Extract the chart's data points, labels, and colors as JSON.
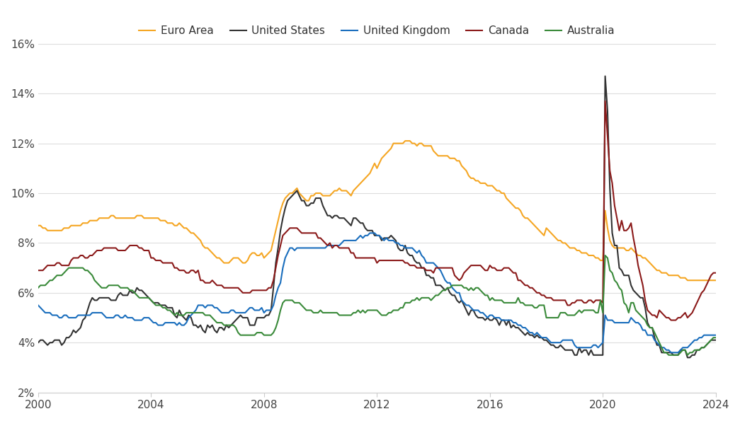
{
  "title": "",
  "background_color": "#ffffff",
  "legend_entries": [
    "Euro Area",
    "United States",
    "United Kingdom",
    "Canada",
    "Australia"
  ],
  "colors": {
    "Euro Area": "#F5A623",
    "United States": "#333333",
    "United Kingdom": "#1A6EBD",
    "Canada": "#8B1A1A",
    "Australia": "#3A8A3A"
  },
  "ylim": [
    0.02,
    0.16
  ],
  "xlim": [
    2000,
    2024
  ],
  "yticks": [
    0.02,
    0.04,
    0.06,
    0.08,
    0.1,
    0.12,
    0.14,
    0.16
  ],
  "ytick_labels": [
    "2%",
    "4%",
    "6%",
    "8%",
    "10%",
    "12%",
    "14%",
    "16%"
  ],
  "xticks": [
    2000,
    2004,
    2008,
    2012,
    2016,
    2020,
    2024
  ],
  "figsize": [
    10.45,
    5.95
  ],
  "dpi": 100,
  "line_width": 1.5,
  "dates": [
    2000.0,
    2000.083,
    2000.167,
    2000.25,
    2000.333,
    2000.417,
    2000.5,
    2000.583,
    2000.667,
    2000.75,
    2000.833,
    2000.917,
    2001.0,
    2001.083,
    2001.167,
    2001.25,
    2001.333,
    2001.417,
    2001.5,
    2001.583,
    2001.667,
    2001.75,
    2001.833,
    2001.917,
    2002.0,
    2002.083,
    2002.167,
    2002.25,
    2002.333,
    2002.417,
    2002.5,
    2002.583,
    2002.667,
    2002.75,
    2002.833,
    2002.917,
    2003.0,
    2003.083,
    2003.167,
    2003.25,
    2003.333,
    2003.417,
    2003.5,
    2003.583,
    2003.667,
    2003.75,
    2003.833,
    2003.917,
    2004.0,
    2004.083,
    2004.167,
    2004.25,
    2004.333,
    2004.417,
    2004.5,
    2004.583,
    2004.667,
    2004.75,
    2004.833,
    2004.917,
    2005.0,
    2005.083,
    2005.167,
    2005.25,
    2005.333,
    2005.417,
    2005.5,
    2005.583,
    2005.667,
    2005.75,
    2005.833,
    2005.917,
    2006.0,
    2006.083,
    2006.167,
    2006.25,
    2006.333,
    2006.417,
    2006.5,
    2006.583,
    2006.667,
    2006.75,
    2006.833,
    2006.917,
    2007.0,
    2007.083,
    2007.167,
    2007.25,
    2007.333,
    2007.417,
    2007.5,
    2007.583,
    2007.667,
    2007.75,
    2007.833,
    2007.917,
    2008.0,
    2008.083,
    2008.167,
    2008.25,
    2008.333,
    2008.417,
    2008.5,
    2008.583,
    2008.667,
    2008.75,
    2008.833,
    2008.917,
    2009.0,
    2009.083,
    2009.167,
    2009.25,
    2009.333,
    2009.417,
    2009.5,
    2009.583,
    2009.667,
    2009.75,
    2009.833,
    2009.917,
    2010.0,
    2010.083,
    2010.167,
    2010.25,
    2010.333,
    2010.417,
    2010.5,
    2010.583,
    2010.667,
    2010.75,
    2010.833,
    2010.917,
    2011.0,
    2011.083,
    2011.167,
    2011.25,
    2011.333,
    2011.417,
    2011.5,
    2011.583,
    2011.667,
    2011.75,
    2011.833,
    2011.917,
    2012.0,
    2012.083,
    2012.167,
    2012.25,
    2012.333,
    2012.417,
    2012.5,
    2012.583,
    2012.667,
    2012.75,
    2012.833,
    2012.917,
    2013.0,
    2013.083,
    2013.167,
    2013.25,
    2013.333,
    2013.417,
    2013.5,
    2013.583,
    2013.667,
    2013.75,
    2013.833,
    2013.917,
    2014.0,
    2014.083,
    2014.167,
    2014.25,
    2014.333,
    2014.417,
    2014.5,
    2014.583,
    2014.667,
    2014.75,
    2014.833,
    2014.917,
    2015.0,
    2015.083,
    2015.167,
    2015.25,
    2015.333,
    2015.417,
    2015.5,
    2015.583,
    2015.667,
    2015.75,
    2015.833,
    2015.917,
    2016.0,
    2016.083,
    2016.167,
    2016.25,
    2016.333,
    2016.417,
    2016.5,
    2016.583,
    2016.667,
    2016.75,
    2016.833,
    2016.917,
    2017.0,
    2017.083,
    2017.167,
    2017.25,
    2017.333,
    2017.417,
    2017.5,
    2017.583,
    2017.667,
    2017.75,
    2017.833,
    2017.917,
    2018.0,
    2018.083,
    2018.167,
    2018.25,
    2018.333,
    2018.417,
    2018.5,
    2018.583,
    2018.667,
    2018.75,
    2018.833,
    2018.917,
    2019.0,
    2019.083,
    2019.167,
    2019.25,
    2019.333,
    2019.417,
    2019.5,
    2019.583,
    2019.667,
    2019.75,
    2019.833,
    2019.917,
    2020.0,
    2020.083,
    2020.167,
    2020.25,
    2020.333,
    2020.417,
    2020.5,
    2020.583,
    2020.667,
    2020.75,
    2020.833,
    2020.917,
    2021.0,
    2021.083,
    2021.167,
    2021.25,
    2021.333,
    2021.417,
    2021.5,
    2021.583,
    2021.667,
    2021.75,
    2021.833,
    2021.917,
    2022.0,
    2022.083,
    2022.167,
    2022.25,
    2022.333,
    2022.417,
    2022.5,
    2022.583,
    2022.667,
    2022.75,
    2022.833,
    2022.917,
    2023.0,
    2023.083,
    2023.167,
    2023.25,
    2023.333,
    2023.417,
    2023.5,
    2023.583,
    2023.667,
    2023.75,
    2023.833,
    2023.917,
    2024.0
  ],
  "euro_area": [
    8.7,
    8.7,
    8.6,
    8.6,
    8.5,
    8.5,
    8.5,
    8.5,
    8.5,
    8.5,
    8.5,
    8.6,
    8.6,
    8.6,
    8.7,
    8.7,
    8.7,
    8.7,
    8.7,
    8.8,
    8.8,
    8.8,
    8.9,
    8.9,
    8.9,
    8.9,
    9.0,
    9.0,
    9.0,
    9.0,
    9.0,
    9.1,
    9.1,
    9.0,
    9.0,
    9.0,
    9.0,
    9.0,
    9.0,
    9.0,
    9.0,
    9.0,
    9.1,
    9.1,
    9.1,
    9.0,
    9.0,
    9.0,
    9.0,
    9.0,
    9.0,
    9.0,
    8.9,
    8.9,
    8.9,
    8.8,
    8.8,
    8.8,
    8.7,
    8.7,
    8.8,
    8.7,
    8.6,
    8.6,
    8.5,
    8.4,
    8.4,
    8.3,
    8.2,
    8.1,
    7.9,
    7.8,
    7.8,
    7.7,
    7.6,
    7.5,
    7.4,
    7.4,
    7.3,
    7.2,
    7.2,
    7.2,
    7.3,
    7.4,
    7.4,
    7.4,
    7.3,
    7.2,
    7.2,
    7.3,
    7.5,
    7.6,
    7.6,
    7.5,
    7.5,
    7.6,
    7.4,
    7.5,
    7.6,
    7.7,
    8.1,
    8.5,
    8.9,
    9.3,
    9.6,
    9.8,
    9.9,
    10.0,
    10.0,
    10.1,
    10.2,
    10.0,
    9.9,
    9.8,
    9.7,
    9.7,
    9.9,
    9.9,
    10.0,
    10.0,
    10.0,
    9.9,
    9.9,
    9.9,
    9.9,
    10.0,
    10.1,
    10.1,
    10.2,
    10.1,
    10.1,
    10.1,
    10.0,
    9.9,
    10.1,
    10.2,
    10.3,
    10.4,
    10.5,
    10.6,
    10.7,
    10.8,
    11.0,
    11.2,
    11.0,
    11.2,
    11.4,
    11.5,
    11.6,
    11.7,
    11.8,
    12.0,
    12.0,
    12.0,
    12.0,
    12.0,
    12.1,
    12.1,
    12.1,
    12.0,
    12.0,
    11.9,
    12.0,
    12.0,
    11.9,
    11.9,
    11.9,
    11.9,
    11.7,
    11.6,
    11.5,
    11.5,
    11.5,
    11.5,
    11.5,
    11.4,
    11.4,
    11.4,
    11.3,
    11.3,
    11.1,
    11.0,
    10.9,
    10.7,
    10.6,
    10.6,
    10.5,
    10.5,
    10.4,
    10.4,
    10.4,
    10.3,
    10.3,
    10.3,
    10.2,
    10.1,
    10.1,
    10.0,
    10.0,
    9.8,
    9.7,
    9.6,
    9.5,
    9.4,
    9.4,
    9.3,
    9.1,
    9.0,
    9.0,
    8.9,
    8.8,
    8.7,
    8.6,
    8.5,
    8.4,
    8.3,
    8.6,
    8.5,
    8.4,
    8.3,
    8.2,
    8.1,
    8.1,
    8.0,
    8.0,
    7.9,
    7.8,
    7.8,
    7.8,
    7.7,
    7.7,
    7.6,
    7.6,
    7.6,
    7.5,
    7.5,
    7.5,
    7.4,
    7.4,
    7.3,
    7.3,
    9.3,
    8.6,
    8.1,
    7.9,
    7.8,
    7.8,
    7.8,
    7.8,
    7.8,
    7.7,
    7.7,
    7.8,
    7.7,
    7.6,
    7.5,
    7.5,
    7.4,
    7.4,
    7.3,
    7.2,
    7.1,
    7.0,
    6.9,
    6.9,
    6.8,
    6.8,
    6.8,
    6.7,
    6.7,
    6.7,
    6.7,
    6.7,
    6.6,
    6.6,
    6.6,
    6.5,
    6.5,
    6.5,
    6.5,
    6.5,
    6.5,
    6.5,
    6.5,
    6.5,
    6.5,
    6.5,
    6.5,
    6.5
  ],
  "united_states": [
    4.0,
    4.1,
    4.1,
    4.0,
    3.9,
    4.0,
    4.0,
    4.1,
    4.1,
    4.1,
    3.9,
    4.0,
    4.2,
    4.2,
    4.3,
    4.5,
    4.4,
    4.5,
    4.6,
    4.9,
    5.0,
    5.3,
    5.6,
    5.8,
    5.7,
    5.7,
    5.8,
    5.8,
    5.8,
    5.8,
    5.8,
    5.7,
    5.7,
    5.7,
    5.9,
    6.0,
    5.9,
    5.9,
    5.9,
    6.1,
    6.0,
    6.0,
    6.2,
    6.1,
    6.1,
    6.0,
    5.9,
    5.8,
    5.7,
    5.6,
    5.6,
    5.6,
    5.5,
    5.5,
    5.5,
    5.4,
    5.4,
    5.4,
    5.1,
    5.0,
    5.3,
    5.1,
    5.0,
    4.9,
    5.1,
    5.0,
    4.7,
    4.7,
    4.6,
    4.7,
    4.5,
    4.4,
    4.7,
    4.6,
    4.7,
    4.5,
    4.4,
    4.6,
    4.6,
    4.5,
    4.7,
    4.6,
    4.7,
    4.8,
    4.9,
    5.0,
    5.1,
    5.0,
    5.0,
    5.0,
    4.7,
    4.7,
    4.7,
    5.0,
    5.0,
    5.0,
    5.0,
    5.1,
    5.1,
    5.3,
    6.2,
    7.2,
    7.8,
    8.5,
    9.0,
    9.4,
    9.7,
    9.8,
    9.9,
    10.0,
    10.1,
    9.9,
    9.7,
    9.7,
    9.5,
    9.5,
    9.6,
    9.6,
    9.8,
    9.8,
    9.8,
    9.5,
    9.3,
    9.1,
    9.1,
    9.0,
    9.1,
    9.1,
    9.0,
    9.0,
    9.0,
    8.9,
    8.8,
    8.7,
    9.0,
    9.0,
    8.9,
    8.8,
    8.8,
    8.6,
    8.5,
    8.5,
    8.5,
    8.3,
    8.3,
    8.3,
    8.1,
    8.2,
    8.2,
    8.2,
    8.3,
    8.2,
    8.1,
    7.8,
    7.7,
    7.7,
    7.9,
    7.6,
    7.5,
    7.5,
    7.3,
    7.2,
    7.2,
    7.0,
    7.0,
    6.7,
    6.7,
    6.6,
    6.6,
    6.3,
    6.3,
    6.3,
    6.2,
    6.1,
    6.2,
    6.0,
    5.9,
    5.9,
    5.7,
    5.6,
    5.7,
    5.5,
    5.3,
    5.1,
    5.3,
    5.3,
    5.1,
    5.0,
    5.0,
    5.0,
    4.9,
    5.0,
    4.9,
    4.9,
    5.0,
    4.9,
    4.7,
    4.9,
    4.9,
    4.7,
    4.9,
    4.6,
    4.7,
    4.6,
    4.6,
    4.5,
    4.4,
    4.3,
    4.4,
    4.3,
    4.3,
    4.2,
    4.3,
    4.2,
    4.2,
    4.1,
    4.1,
    4.0,
    3.9,
    3.9,
    3.8,
    3.8,
    3.9,
    3.8,
    3.7,
    3.7,
    3.7,
    3.7,
    3.5,
    3.5,
    3.8,
    3.6,
    3.7,
    3.7,
    3.5,
    3.7,
    3.5,
    3.5,
    3.5,
    3.5,
    3.5,
    14.7,
    13.3,
    10.2,
    8.4,
    7.9,
    7.9,
    7.0,
    6.9,
    6.7,
    6.7,
    6.7,
    6.3,
    6.1,
    6.0,
    5.9,
    5.8,
    5.8,
    5.4,
    4.8,
    4.6,
    4.6,
    4.2,
    3.9,
    3.9,
    3.6,
    3.6,
    3.6,
    3.6,
    3.6,
    3.5,
    3.5,
    3.5,
    3.7,
    3.7,
    3.7,
    3.4,
    3.4,
    3.5,
    3.5,
    3.7,
    3.7,
    3.8,
    3.8,
    3.9,
    4.0,
    4.1,
    4.1,
    4.1
  ],
  "united_kingdom": [
    5.5,
    5.4,
    5.3,
    5.2,
    5.2,
    5.2,
    5.1,
    5.1,
    5.1,
    5.0,
    5.0,
    5.1,
    5.1,
    5.0,
    5.0,
    5.0,
    5.0,
    5.1,
    5.1,
    5.1,
    5.1,
    5.1,
    5.1,
    5.2,
    5.2,
    5.2,
    5.2,
    5.2,
    5.1,
    5.0,
    5.0,
    5.0,
    5.0,
    5.1,
    5.1,
    5.0,
    5.0,
    5.1,
    5.0,
    5.0,
    5.0,
    4.9,
    4.9,
    4.9,
    4.9,
    5.0,
    5.0,
    5.0,
    4.9,
    4.8,
    4.8,
    4.7,
    4.7,
    4.7,
    4.8,
    4.8,
    4.8,
    4.8,
    4.8,
    4.7,
    4.8,
    4.7,
    4.7,
    4.8,
    5.0,
    5.1,
    5.2,
    5.3,
    5.5,
    5.5,
    5.5,
    5.4,
    5.5,
    5.5,
    5.5,
    5.4,
    5.4,
    5.3,
    5.2,
    5.2,
    5.2,
    5.2,
    5.3,
    5.3,
    5.2,
    5.2,
    5.2,
    5.2,
    5.2,
    5.3,
    5.4,
    5.4,
    5.3,
    5.3,
    5.3,
    5.4,
    5.2,
    5.3,
    5.3,
    5.3,
    5.5,
    5.9,
    6.2,
    6.4,
    7.0,
    7.4,
    7.6,
    7.8,
    7.8,
    7.7,
    7.8,
    7.8,
    7.8,
    7.8,
    7.8,
    7.8,
    7.8,
    7.8,
    7.8,
    7.8,
    7.8,
    7.8,
    7.8,
    7.9,
    7.9,
    7.9,
    7.9,
    7.9,
    7.9,
    8.0,
    8.1,
    8.1,
    8.1,
    8.1,
    8.1,
    8.1,
    8.2,
    8.3,
    8.2,
    8.3,
    8.3,
    8.4,
    8.4,
    8.4,
    8.3,
    8.3,
    8.2,
    8.1,
    8.2,
    8.1,
    8.1,
    8.1,
    8.0,
    8.0,
    7.9,
    7.9,
    7.8,
    7.8,
    7.8,
    7.8,
    7.7,
    7.6,
    7.7,
    7.5,
    7.4,
    7.2,
    7.2,
    7.2,
    7.2,
    7.1,
    7.0,
    6.9,
    6.7,
    6.5,
    6.4,
    6.4,
    6.2,
    6.1,
    6.0,
    6.0,
    5.7,
    5.6,
    5.5,
    5.5,
    5.4,
    5.3,
    5.3,
    5.3,
    5.2,
    5.2,
    5.1,
    5.0,
    5.1,
    5.1,
    5.0,
    5.0,
    5.0,
    4.9,
    4.9,
    4.9,
    4.9,
    4.9,
    4.8,
    4.8,
    4.7,
    4.7,
    4.6,
    4.6,
    4.5,
    4.4,
    4.4,
    4.3,
    4.4,
    4.3,
    4.2,
    4.2,
    4.2,
    4.1,
    4.0,
    4.0,
    4.0,
    4.0,
    4.0,
    4.1,
    4.1,
    4.1,
    4.1,
    4.1,
    3.9,
    3.8,
    3.8,
    3.8,
    3.8,
    3.8,
    3.8,
    3.8,
    3.9,
    3.9,
    3.8,
    3.9,
    4.0,
    5.1,
    4.9,
    4.9,
    4.9,
    4.8,
    4.8,
    4.8,
    4.8,
    4.8,
    4.8,
    4.8,
    5.0,
    4.9,
    4.8,
    4.8,
    4.7,
    4.5,
    4.5,
    4.3,
    4.3,
    4.3,
    4.1,
    4.0,
    3.9,
    3.8,
    3.8,
    3.7,
    3.7,
    3.6,
    3.6,
    3.6,
    3.6,
    3.7,
    3.8,
    3.8,
    3.8,
    3.9,
    4.0,
    4.1,
    4.1,
    4.2,
    4.2,
    4.3,
    4.3,
    4.3,
    4.3,
    4.3,
    4.3
  ],
  "canada": [
    6.9,
    6.9,
    6.9,
    7.0,
    7.1,
    7.1,
    7.1,
    7.1,
    7.2,
    7.2,
    7.1,
    7.1,
    7.1,
    7.1,
    7.3,
    7.4,
    7.4,
    7.4,
    7.5,
    7.5,
    7.4,
    7.4,
    7.5,
    7.5,
    7.6,
    7.7,
    7.7,
    7.7,
    7.8,
    7.8,
    7.8,
    7.8,
    7.8,
    7.8,
    7.7,
    7.7,
    7.7,
    7.7,
    7.8,
    7.9,
    7.9,
    7.9,
    7.9,
    7.8,
    7.8,
    7.7,
    7.7,
    7.7,
    7.4,
    7.4,
    7.3,
    7.3,
    7.3,
    7.2,
    7.2,
    7.2,
    7.2,
    7.2,
    7.0,
    7.0,
    6.9,
    6.9,
    6.9,
    6.8,
    6.8,
    6.9,
    6.9,
    6.8,
    6.9,
    6.5,
    6.5,
    6.4,
    6.4,
    6.4,
    6.5,
    6.4,
    6.3,
    6.3,
    6.3,
    6.2,
    6.2,
    6.2,
    6.2,
    6.2,
    6.2,
    6.2,
    6.1,
    6.0,
    6.0,
    6.0,
    6.0,
    6.1,
    6.1,
    6.1,
    6.1,
    6.1,
    6.1,
    6.1,
    6.2,
    6.2,
    6.5,
    7.0,
    7.5,
    7.9,
    8.3,
    8.4,
    8.5,
    8.6,
    8.6,
    8.6,
    8.6,
    8.5,
    8.4,
    8.4,
    8.4,
    8.4,
    8.4,
    8.4,
    8.4,
    8.2,
    8.2,
    8.1,
    8.0,
    7.9,
    8.0,
    7.8,
    7.9,
    7.9,
    7.8,
    7.8,
    7.8,
    7.8,
    7.8,
    7.6,
    7.6,
    7.4,
    7.4,
    7.4,
    7.4,
    7.4,
    7.4,
    7.4,
    7.4,
    7.4,
    7.2,
    7.3,
    7.3,
    7.3,
    7.3,
    7.3,
    7.3,
    7.3,
    7.3,
    7.3,
    7.3,
    7.3,
    7.2,
    7.2,
    7.1,
    7.1,
    7.1,
    7.0,
    7.0,
    7.0,
    7.0,
    6.9,
    6.9,
    6.9,
    6.8,
    7.0,
    7.0,
    7.0,
    7.0,
    7.0,
    7.0,
    7.0,
    7.0,
    6.7,
    6.6,
    6.5,
    6.6,
    6.8,
    6.9,
    7.0,
    7.1,
    7.1,
    7.1,
    7.1,
    7.1,
    7.0,
    6.9,
    6.9,
    7.1,
    7.0,
    7.0,
    6.9,
    6.9,
    6.9,
    7.0,
    7.0,
    7.0,
    6.9,
    6.8,
    6.8,
    6.5,
    6.5,
    6.4,
    6.3,
    6.3,
    6.2,
    6.2,
    6.1,
    6.0,
    6.0,
    5.9,
    5.9,
    5.8,
    5.8,
    5.8,
    5.7,
    5.7,
    5.7,
    5.7,
    5.7,
    5.7,
    5.5,
    5.5,
    5.6,
    5.6,
    5.7,
    5.7,
    5.7,
    5.6,
    5.6,
    5.7,
    5.7,
    5.6,
    5.7,
    5.7,
    5.7,
    5.6,
    13.7,
    12.3,
    10.9,
    10.4,
    9.5,
    9.0,
    8.5,
    8.9,
    8.5,
    8.5,
    8.6,
    8.8,
    8.2,
    7.7,
    7.1,
    6.7,
    6.3,
    5.7,
    5.3,
    5.2,
    5.1,
    5.1,
    5.0,
    5.3,
    5.2,
    5.1,
    5.0,
    5.0,
    4.9,
    4.9,
    4.9,
    5.0,
    5.0,
    5.1,
    5.2,
    5.0,
    5.1,
    5.2,
    5.4,
    5.6,
    5.8,
    6.0,
    6.1,
    6.3,
    6.5,
    6.7,
    6.8,
    6.8
  ],
  "australia": [
    6.2,
    6.3,
    6.3,
    6.3,
    6.4,
    6.5,
    6.5,
    6.6,
    6.7,
    6.7,
    6.7,
    6.8,
    6.9,
    7.0,
    7.0,
    7.0,
    7.0,
    7.0,
    7.0,
    7.0,
    6.9,
    6.9,
    6.8,
    6.7,
    6.5,
    6.4,
    6.3,
    6.2,
    6.2,
    6.2,
    6.3,
    6.3,
    6.3,
    6.3,
    6.3,
    6.2,
    6.2,
    6.2,
    6.2,
    6.1,
    6.1,
    6.0,
    5.9,
    5.8,
    5.8,
    5.8,
    5.8,
    5.8,
    5.7,
    5.6,
    5.5,
    5.5,
    5.5,
    5.4,
    5.4,
    5.3,
    5.3,
    5.2,
    5.1,
    5.2,
    5.1,
    5.1,
    5.1,
    5.2,
    5.2,
    5.2,
    5.2,
    5.2,
    5.2,
    5.2,
    5.2,
    5.1,
    5.1,
    5.1,
    5.0,
    4.9,
    4.8,
    4.8,
    4.8,
    4.7,
    4.7,
    4.7,
    4.7,
    4.7,
    4.6,
    4.4,
    4.3,
    4.3,
    4.3,
    4.3,
    4.3,
    4.3,
    4.3,
    4.4,
    4.4,
    4.4,
    4.3,
    4.3,
    4.3,
    4.3,
    4.4,
    4.6,
    4.9,
    5.3,
    5.6,
    5.7,
    5.7,
    5.7,
    5.7,
    5.6,
    5.6,
    5.6,
    5.5,
    5.4,
    5.3,
    5.3,
    5.3,
    5.2,
    5.2,
    5.2,
    5.3,
    5.2,
    5.2,
    5.2,
    5.2,
    5.2,
    5.2,
    5.2,
    5.1,
    5.1,
    5.1,
    5.1,
    5.1,
    5.1,
    5.2,
    5.2,
    5.3,
    5.2,
    5.3,
    5.2,
    5.3,
    5.3,
    5.3,
    5.3,
    5.3,
    5.2,
    5.1,
    5.1,
    5.1,
    5.2,
    5.2,
    5.3,
    5.3,
    5.3,
    5.4,
    5.4,
    5.6,
    5.6,
    5.6,
    5.7,
    5.7,
    5.8,
    5.7,
    5.8,
    5.8,
    5.8,
    5.8,
    5.7,
    5.8,
    5.9,
    5.9,
    6.0,
    6.1,
    6.1,
    6.2,
    6.2,
    6.3,
    6.3,
    6.3,
    6.3,
    6.3,
    6.2,
    6.2,
    6.1,
    6.2,
    6.1,
    6.2,
    6.2,
    6.1,
    6.0,
    5.9,
    5.9,
    5.7,
    5.8,
    5.7,
    5.7,
    5.7,
    5.7,
    5.6,
    5.6,
    5.6,
    5.6,
    5.6,
    5.6,
    5.8,
    5.6,
    5.6,
    5.5,
    5.5,
    5.5,
    5.5,
    5.4,
    5.4,
    5.5,
    5.5,
    5.5,
    5.0,
    5.0,
    5.0,
    5.0,
    5.0,
    5.0,
    5.2,
    5.2,
    5.2,
    5.1,
    5.1,
    5.1,
    5.1,
    5.2,
    5.3,
    5.2,
    5.3,
    5.3,
    5.3,
    5.3,
    5.3,
    5.2,
    5.2,
    5.7,
    5.2,
    7.5,
    7.4,
    6.9,
    6.8,
    6.5,
    6.4,
    6.2,
    6.1,
    5.6,
    5.5,
    5.2,
    5.6,
    5.6,
    5.3,
    5.2,
    5.1,
    5.0,
    4.9,
    4.7,
    4.6,
    4.6,
    4.4,
    4.2,
    4.0,
    3.8,
    3.6,
    3.6,
    3.5,
    3.5,
    3.5,
    3.5,
    3.5,
    3.6,
    3.7,
    3.7,
    3.5,
    3.6,
    3.6,
    3.7,
    3.7,
    3.7,
    3.8,
    3.8,
    3.9,
    4.0,
    4.1,
    4.2,
    4.2
  ]
}
